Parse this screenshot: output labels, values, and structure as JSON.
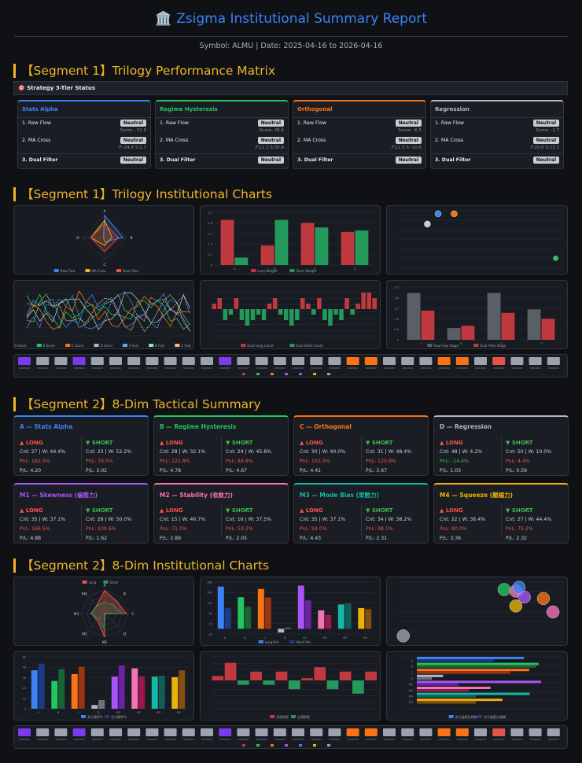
{
  "header": {
    "icon": "🏛️",
    "title": "Zsigma Institutional Summary Report",
    "subtitle": "Symbol: ALMU | Date: 2025-04-16 to 2026-04-16"
  },
  "seg1_matrix": {
    "title": "【Segment 1】Trilogy Performance Matrix",
    "status_bar": "🎯 Strategy 3-Tier Status",
    "cards": [
      {
        "name": "Stats Alpha",
        "color": "#3b82f6",
        "r1": "1. Raw Flow",
        "b1": "Neutral",
        "m1": "Score: -31.9",
        "r2": "2. MA Cross",
        "b2": "Neutral",
        "m2": "F:-24.8 S:2.7",
        "r3": "3. Dual Filter",
        "b3": "Neutral"
      },
      {
        "name": "Regime Hysteresis",
        "color": "#22c55e",
        "r1": "1. Raw Flow",
        "b1": "Neutral",
        "m1": "Score: 26.6",
        "r2": "2. MA Cross",
        "b2": "Neutral",
        "m2": "F:11.1 S:35.4",
        "r3": "3. Dual Filter",
        "b3": "Neutral"
      },
      {
        "name": "Orthogonal",
        "color": "#f97316",
        "r1": "1. Raw Flow",
        "b1": "Neutral",
        "m1": "Score: -6.5",
        "r2": "2. MA Cross",
        "b2": "Neutral",
        "m2": "F:11.5 S:-10.6",
        "r3": "3. Dual Filter",
        "b3": "Neutral"
      },
      {
        "name": "Regression",
        "color": "#b0b8c2",
        "r1": "1. Raw Flow",
        "b1": "Neutral",
        "m1": "Score: -1.7",
        "r2": "2. MA Cross",
        "b2": "Neutral",
        "m2": "F:20.0 S:13.2",
        "r3": "3. Dual Filter",
        "b3": "Neutral"
      }
    ]
  },
  "seg1_charts": {
    "title": "【Segment 1】Trilogy Institutional Charts"
  },
  "seg2_summary": {
    "title": "【Segment 2】8-Dim Tactical Summary",
    "long_label": "▲ LONG",
    "short_label": "▼ SHORT",
    "cards": [
      {
        "name": "A — Stats Alpha",
        "color": "#3b82f6",
        "l_stat": "Cnt: 27 | W: 44.4%",
        "l_pnl": "PnL: 162.5%",
        "l_pl": "P/L: 4.20",
        "s_stat": "Cnt: 23 | W: 52.2%",
        "s_pnl": "PnL: 79.5%",
        "s_pl": "P/L: 3.02"
      },
      {
        "name": "B — Regime Hysteresis",
        "color": "#22c55e",
        "l_stat": "Cnt: 28 | W: 32.1%",
        "l_pnl": "PnL: 121.8%",
        "l_pl": "P/L: 4.78",
        "s_stat": "Cnt: 24 | W: 45.8%",
        "s_pnl": "PnL: 84.8%",
        "s_pl": "P/L: 4.67"
      },
      {
        "name": "C — Orthogonal",
        "color": "#f97316",
        "l_stat": "Cnt: 30 | W: 40.0%",
        "l_pnl": "PnL: 153.3%",
        "l_pl": "P/L: 4.41",
        "s_stat": "Cnt: 31 | W: 48.4%",
        "s_pnl": "PnL: 120.9%",
        "s_pl": "P/L: 3.67"
      },
      {
        "name": "D — Regression",
        "color": "#b0b8c2",
        "l_stat": "Cnt: 48 | W: 4.2%",
        "l_pnl": "PnL: -14.4%",
        "l_pl": "P/L: 1.03",
        "s_stat": "Cnt: 50 | W: 10.0%",
        "s_pnl": "PnL: 4.4%",
        "s_pl": "P/L: 0.59"
      },
      {
        "name": "M1 — Skewness (偏態力)",
        "color": "#a855f7",
        "l_stat": "Cnt: 35 | W: 37.1%",
        "l_pnl": "PnL: 166.5%",
        "l_pl": "P/L: 4.88",
        "s_stat": "Cnt: 28 | W: 50.0%",
        "s_pnl": "PnL: 109.6%",
        "s_pl": "P/L: 1.62"
      },
      {
        "name": "M2 — Stability (收斂力)",
        "color": "#f472b6",
        "l_stat": "Cnt: 15 | W: 46.7%",
        "l_pnl": "PnL: 71.0%",
        "l_pl": "P/L: 2.89",
        "s_stat": "Cnt: 16 | W: 37.5%",
        "s_pnl": "PnL: 53.2%",
        "s_pl": "P/L: 2.05"
      },
      {
        "name": "M3 — Mode Bias (眾數力)",
        "color": "#14b8a6",
        "l_stat": "Cnt: 35 | W: 37.1%",
        "l_pnl": "PnL: 94.0%",
        "l_pl": "P/L: 4.43",
        "s_stat": "Cnt: 34 | W: 38.2%",
        "s_pnl": "PnL: 98.1%",
        "s_pl": "P/L: 2.31"
      },
      {
        "name": "M4 — Squeeze (壓縮力)",
        "color": "#eab308",
        "l_stat": "Cnt: 22 | W: 36.4%",
        "l_pnl": "PnL: 80.0%",
        "l_pl": "P/L: 3.36",
        "s_stat": "Cnt: 27 | W: 44.4%",
        "s_pnl": "PnL: 75.2%",
        "s_pl": "P/L: 2.32"
      }
    ]
  },
  "seg2_charts": {
    "title": "【Segment 2】8-Dim Institutional Charts"
  },
  "chart_data": [
    {
      "type": "radar",
      "id": "s1_radar",
      "axes": [
        "A",
        "B",
        "C",
        "D"
      ],
      "series": [
        {
          "name": "Raw Flow",
          "values": [
            31.9,
            26.6,
            6.5,
            1.7
          ]
        },
        {
          "name": "MA Cross",
          "values": [
            24.8,
            11.1,
            11.5,
            20.0
          ]
        },
        {
          "name": "Dual Filter",
          "values": [
            20,
            20,
            20,
            20
          ]
        }
      ]
    },
    {
      "type": "bar",
      "id": "s1_bar",
      "categories": [
        "A",
        "B",
        "C",
        "D"
      ],
      "series": [
        {
          "name": "Long Weight",
          "values": [
            3.0,
            1.3,
            2.8,
            2.2
          ]
        },
        {
          "name": "Short Weight",
          "values": [
            0.5,
            3.0,
            2.5,
            2.3
          ]
        }
      ],
      "ylim": [
        0,
        3.5
      ]
    },
    {
      "type": "scatter",
      "id": "s1_scatter",
      "points": [
        {
          "x": 30,
          "y": 47
        },
        {
          "x": 42,
          "y": 47
        },
        {
          "x": 22,
          "y": 38
        },
        {
          "x": 118,
          "y": 8
        }
      ]
    },
    {
      "type": "line",
      "id": "s1_lines",
      "series": [
        "A Score",
        "B Score",
        "C Score",
        "D Score",
        "A Fast",
        "B Fast",
        "C Fast"
      ],
      "ylim": [
        -60,
        60
      ]
    },
    {
      "type": "bar",
      "id": "s1_flow",
      "legend": [
        "Dual Long Count",
        "Dual Short Count"
      ],
      "ylim": [
        -4,
        4
      ]
    },
    {
      "type": "bar",
      "id": "s1_stage",
      "categories": [
        "A",
        "B",
        "C",
        "D"
      ],
      "series": [
        {
          "name": "Raw Flow Stage",
          "values": [
            4,
            1,
            4,
            2.6
          ]
        },
        {
          "name": "Dual Filter Stage",
          "values": [
            2.5,
            1.2,
            2.3,
            1.8
          ]
        }
      ],
      "ylim": [
        0,
        4.5
      ]
    },
    {
      "type": "radar",
      "id": "s2_radar",
      "axes": [
        "A",
        "B",
        "C",
        "D",
        "M1",
        "M2",
        "M3",
        "M4"
      ],
      "series": [
        {
          "name": "Long",
          "values": [
            162.5,
            121.8,
            153.3,
            -14.4,
            166.5,
            71.0,
            94.0,
            80.0
          ]
        },
        {
          "name": "Short",
          "values": [
            79.5,
            84.8,
            120.9,
            4.4,
            109.6,
            53.2,
            98.1,
            75.2
          ]
        }
      ]
    },
    {
      "type": "bar",
      "id": "s2_pnl",
      "categories": [
        "A",
        "B",
        "C",
        "D",
        "M1",
        "M2",
        "M3",
        "M4"
      ],
      "series": [
        {
          "name": "Long PnL",
          "values": [
            162.5,
            121.8,
            153.3,
            -14.4,
            166.5,
            71.0,
            94.0,
            80.0
          ]
        },
        {
          "name": "Short PnL",
          "values": [
            79.5,
            84.8,
            120.9,
            4.4,
            109.6,
            53.2,
            98.1,
            75.2
          ]
        }
      ],
      "ylim": [
        -20,
        180
      ]
    },
    {
      "type": "scatter",
      "id": "s2_bubble",
      "points": [
        {
          "x": 100,
          "y": 70
        },
        {
          "x": 111,
          "y": 68
        },
        {
          "x": 119,
          "y": 60
        },
        {
          "x": 137,
          "y": 58
        },
        {
          "x": 114,
          "y": 73
        },
        {
          "x": 111,
          "y": 48
        },
        {
          "x": 146,
          "y": 40
        },
        {
          "x": 5,
          "y": 8
        }
      ]
    },
    {
      "type": "bar",
      "id": "s2_win",
      "categories": [
        "A",
        "B",
        "C",
        "D",
        "M1",
        "M2",
        "M3",
        "M4"
      ],
      "series": [
        {
          "name": "多方勝率%",
          "values": [
            44.4,
            32.1,
            40.0,
            4.2,
            37.1,
            46.7,
            37.1,
            36.4
          ]
        },
        {
          "name": "空方勝率%",
          "values": [
            52.2,
            45.8,
            48.4,
            10.0,
            50.0,
            37.5,
            38.2,
            44.4
          ]
        }
      ],
      "ylim": [
        0,
        60
      ]
    },
    {
      "type": "bar",
      "id": "s2_state",
      "legend": [
        "多頭狀態",
        "空頭狀態"
      ],
      "ylim": [
        -4,
        4
      ]
    },
    {
      "type": "hbar",
      "id": "s2_hbar",
      "legend": [
        "多方盈虧比報酬",
        "空方盈虧比報酬"
      ],
      "categories": [
        "A",
        "B",
        "C",
        "D",
        "M1",
        "M2",
        "M3",
        "M4"
      ],
      "series": [
        {
          "name": "多方盈虧比報酬",
          "values": [
            4.2,
            4.78,
            4.41,
            1.03,
            4.88,
            2.89,
            4.43,
            3.36
          ]
        },
        {
          "name": "空方盈虧比報酬",
          "values": [
            3.02,
            4.67,
            3.67,
            0.59,
            1.62,
            2.05,
            2.31,
            2.32
          ]
        }
      ],
      "xlim": [
        0,
        5
      ]
    }
  ]
}
